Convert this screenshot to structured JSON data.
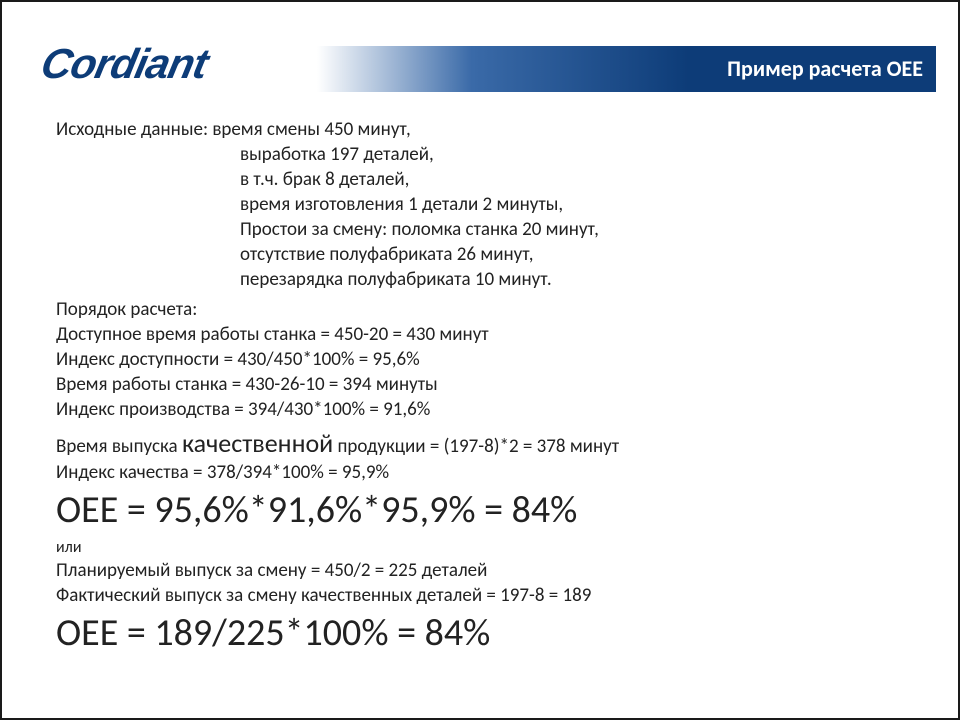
{
  "colors": {
    "brand_primary": "#0d3c78",
    "gradient_mid": "#3a6aa8",
    "text": "#222222",
    "background": "#ffffff",
    "header_text": "#ffffff"
  },
  "typography": {
    "body_fontsize": 19,
    "emphasis_fontsize": 26,
    "big_formula_fontsize": 38,
    "logo_fontsize": 42,
    "header_title_fontsize": 22
  },
  "header": {
    "logo": "Cordiant",
    "title": "Пример расчета ОЕЕ"
  },
  "given": {
    "label": "Исходные данные:",
    "items": [
      "время смены 450 минут,",
      "выработка 197 деталей,",
      "в т.ч. брак 8 деталей,",
      "время изготовления 1 детали 2 минуты,",
      "Простои за смену: поломка станка 20 минут,",
      "отсутствие полуфабриката 26 минут,",
      "перезарядка полуфабриката 10 минут."
    ]
  },
  "calc": {
    "label": "Порядок расчета:",
    "lines": [
      "Доступное время работы станка = 450-20 = 430 минут",
      "Индекс доступности = 430/450*100% = 95,6%",
      "Время работы станка = 430-26-10 = 394 минуты",
      "Индекс производства = 394/430*100% = 91,6%"
    ]
  },
  "quality_line": {
    "pre": "Время выпуска ",
    "emph": "качественной",
    "post": " продукции = (197-8)*2 = 378 минут"
  },
  "quality_index": "Индекс качества = 378/394*100%  = 95,9%",
  "oee_formula_1": "OEE = 95,6%*91,6%*95,9% = 84%",
  "or_label": "или",
  "alt_lines": [
    "Планируемый выпуск за смену = 450/2 = 225 деталей",
    "Фактический выпуск за смену качественных деталей = 197-8 = 189"
  ],
  "oee_formula_2": "ОЕЕ = 189/225*100% = 84%"
}
